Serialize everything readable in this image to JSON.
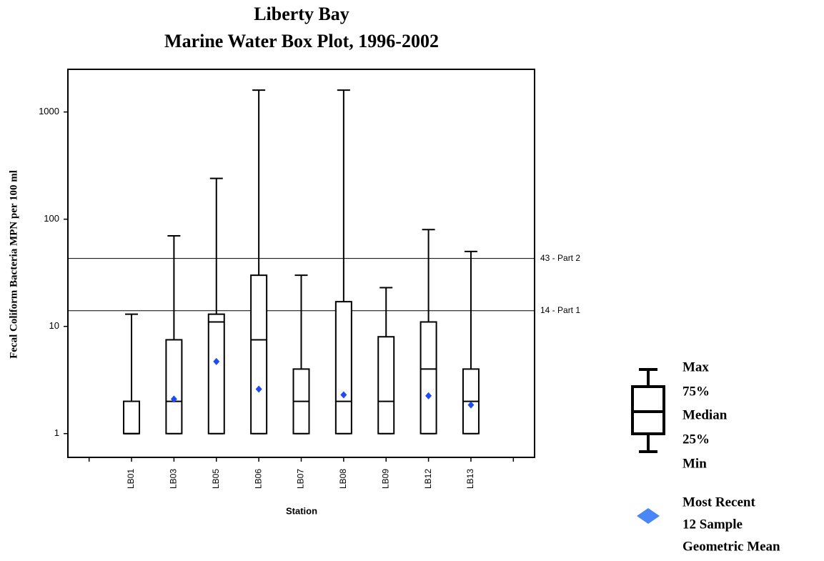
{
  "chart_data": {
    "type": "box",
    "title": "Liberty Bay",
    "subtitle": "Marine Water Box Plot, 1996-2002",
    "y_label": "Fecal Coliform Bacteria MPN per 100 ml",
    "x_label": "Station",
    "log_scale": true,
    "ylim": [
      0.6,
      2500
    ],
    "yticks": [
      1,
      10,
      100,
      1000
    ],
    "categories": [
      null,
      "LB01",
      "LB03",
      "LB05",
      "LB06",
      "LB07",
      "LB08",
      "LB09",
      "LB12",
      "LB13",
      null
    ],
    "min": [
      null,
      1,
      1,
      1,
      1,
      1,
      1,
      1,
      1,
      1,
      null
    ],
    "q1": [
      null,
      1,
      1,
      1,
      1,
      1,
      1,
      1,
      1,
      1,
      null
    ],
    "median": [
      null,
      1,
      2,
      11,
      7.5,
      2,
      2,
      2,
      4,
      2,
      null
    ],
    "q3": [
      null,
      2,
      7.5,
      13,
      30,
      4,
      17,
      8,
      11,
      4,
      null
    ],
    "max": [
      null,
      13,
      70,
      240,
      1600,
      30,
      1600,
      23,
      80,
      50,
      null
    ],
    "mean": [
      null,
      null,
      2.1,
      4.7,
      2.6,
      null,
      2.3,
      null,
      2.25,
      1.85,
      null
    ],
    "mean_color": "#1f4cf0",
    "reference_lines": [
      {
        "value": 43,
        "label": "43 - Part 2"
      },
      {
        "value": 14,
        "label": "14 - Part 1"
      }
    ],
    "legend": {
      "max": "Max",
      "q3": "75%",
      "median": "Median",
      "q1": "25%",
      "min": "Min",
      "mean_lines": [
        "Most Recent",
        "12 Sample",
        "Geometric Mean"
      ],
      "mean_color": "#4a86f5"
    }
  }
}
